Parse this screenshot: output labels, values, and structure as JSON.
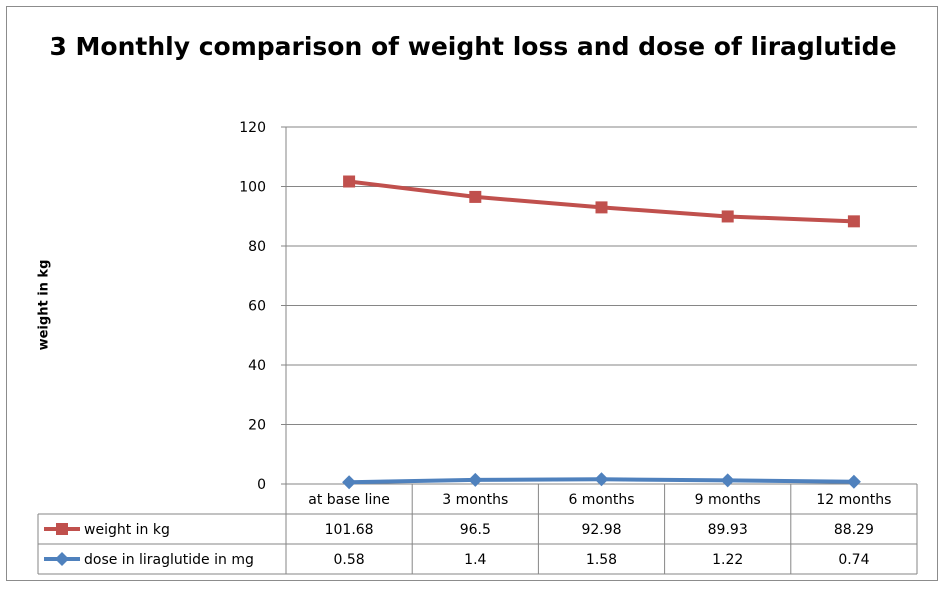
{
  "chart_data": {
    "type": "line",
    "title": "3 Monthly comparison of weight loss and dose of liraglutide",
    "ylabel": "weight in kg",
    "xlabel": "",
    "ylim": [
      0,
      120
    ],
    "yticks": [
      0,
      20,
      40,
      60,
      80,
      100,
      120
    ],
    "grid": true,
    "legend": "data-table",
    "categories": [
      "at base line",
      "3 months",
      "6 months",
      "9 months",
      "12 months"
    ],
    "series": [
      {
        "name": "weight in kg",
        "values": [
          101.68,
          96.5,
          92.98,
          89.93,
          88.29
        ],
        "display": [
          "101.68",
          "96.5",
          "92.98",
          "89.93",
          "88.29"
        ],
        "color": "#C0504D",
        "marker": "square"
      },
      {
        "name": "dose in liraglutide in mg",
        "values": [
          0.58,
          1.4,
          1.58,
          1.22,
          0.74
        ],
        "display": [
          "0.58",
          "1.4",
          "1.58",
          "1.22",
          "0.74"
        ],
        "color": "#4F81BD",
        "marker": "diamond"
      }
    ]
  }
}
